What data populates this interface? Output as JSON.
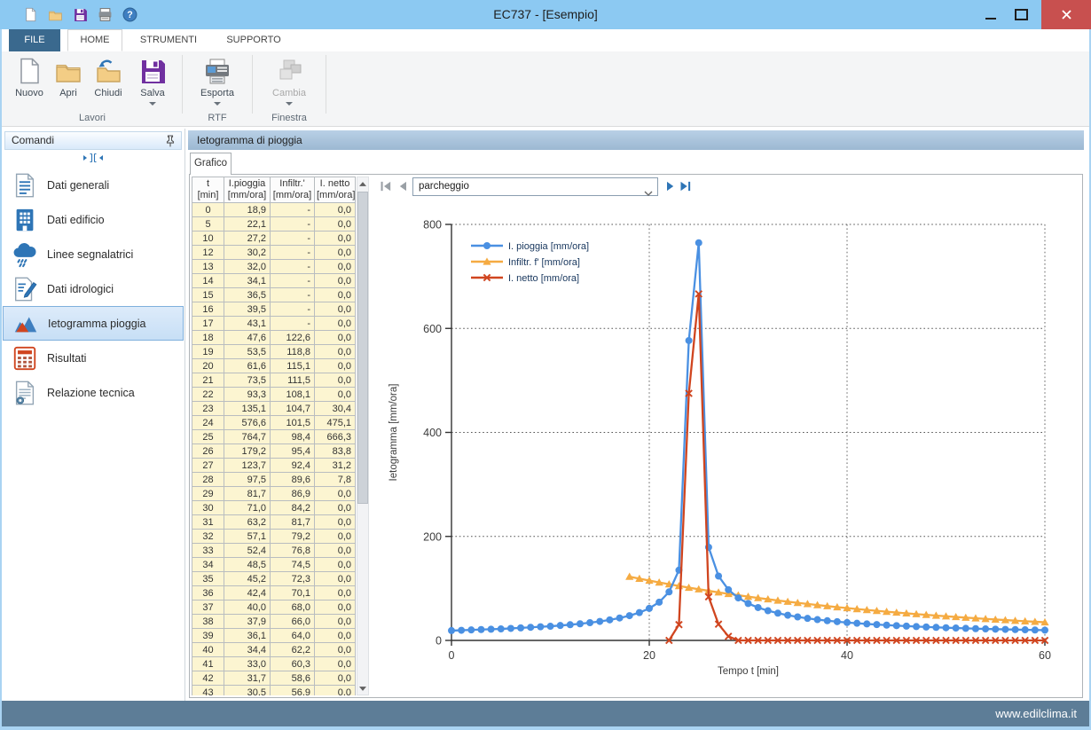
{
  "titlebar": {
    "title": "EC737 - [Esempio]",
    "qat_icons": [
      "new-document-icon",
      "open-folder-icon",
      "save-icon",
      "print-icon",
      "help-icon"
    ]
  },
  "ribbon": {
    "tabs": [
      {
        "label": "FILE"
      },
      {
        "label": "HOME",
        "selected": true
      },
      {
        "label": "STRUMENTI"
      },
      {
        "label": "SUPPORTO"
      }
    ],
    "groups": [
      {
        "label": "Lavori",
        "buttons": [
          {
            "label": "Nuovo",
            "icon": "new-document-icon"
          },
          {
            "label": "Apri",
            "icon": "open-folder-icon"
          },
          {
            "label": "Chiudi",
            "icon": "close-folder-icon"
          },
          {
            "label": "Salva",
            "icon": "save-icon",
            "dropdown": true
          }
        ]
      },
      {
        "label": "RTF",
        "buttons": [
          {
            "label": "Esporta",
            "icon": "export-printer-icon",
            "dropdown": true
          }
        ]
      },
      {
        "label": "Finestra",
        "buttons": [
          {
            "label": "Cambia",
            "icon": "cascade-windows-icon",
            "dropdown": true,
            "disabled": true
          }
        ]
      }
    ]
  },
  "sidebar": {
    "header": "Comandi",
    "items": [
      {
        "label": "Dati generali",
        "icon": "document-lines-icon"
      },
      {
        "label": "Dati edificio",
        "icon": "building-icon"
      },
      {
        "label": "Linee segnalatrici",
        "icon": "rain-cloud-icon"
      },
      {
        "label": "Dati idrologici",
        "icon": "document-pencil-icon"
      },
      {
        "label": "Ietogramma pioggia",
        "icon": "area-chart-icon",
        "selected": true
      },
      {
        "label": "Risultati",
        "icon": "results-grid-icon"
      },
      {
        "label": "Relazione tecnica",
        "icon": "report-icon"
      }
    ]
  },
  "content": {
    "header": "Ietogramma di pioggia",
    "tab": "Grafico",
    "nav": {
      "value": "parcheggio"
    },
    "table": {
      "headers": [
        {
          "line1": "t",
          "line2": "[min]"
        },
        {
          "line1": "I.pioggia",
          "line2": "[mm/ora]"
        },
        {
          "line1": "Infiltr.'",
          "line2": "[mm/ora]"
        },
        {
          "line1": "I. netto",
          "line2": "[mm/ora]"
        }
      ],
      "rows": [
        [
          "0",
          "18,9",
          "-",
          "0,0"
        ],
        [
          "5",
          "22,1",
          "-",
          "0,0"
        ],
        [
          "10",
          "27,2",
          "-",
          "0,0"
        ],
        [
          "12",
          "30,2",
          "-",
          "0,0"
        ],
        [
          "13",
          "32,0",
          "-",
          "0,0"
        ],
        [
          "14",
          "34,1",
          "-",
          "0,0"
        ],
        [
          "15",
          "36,5",
          "-",
          "0,0"
        ],
        [
          "16",
          "39,5",
          "-",
          "0,0"
        ],
        [
          "17",
          "43,1",
          "-",
          "0,0"
        ],
        [
          "18",
          "47,6",
          "122,6",
          "0,0"
        ],
        [
          "19",
          "53,5",
          "118,8",
          "0,0"
        ],
        [
          "20",
          "61,6",
          "115,1",
          "0,0"
        ],
        [
          "21",
          "73,5",
          "111,5",
          "0,0"
        ],
        [
          "22",
          "93,3",
          "108,1",
          "0,0"
        ],
        [
          "23",
          "135,1",
          "104,7",
          "30,4"
        ],
        [
          "24",
          "576,6",
          "101,5",
          "475,1"
        ],
        [
          "25",
          "764,7",
          "98,4",
          "666,3"
        ],
        [
          "26",
          "179,2",
          "95,4",
          "83,8"
        ],
        [
          "27",
          "123,7",
          "92,4",
          "31,2"
        ],
        [
          "28",
          "97,5",
          "89,6",
          "7,8"
        ],
        [
          "29",
          "81,7",
          "86,9",
          "0,0"
        ],
        [
          "30",
          "71,0",
          "84,2",
          "0,0"
        ],
        [
          "31",
          "63,2",
          "81,7",
          "0,0"
        ],
        [
          "32",
          "57,1",
          "79,2",
          "0,0"
        ],
        [
          "33",
          "52,4",
          "76,8",
          "0,0"
        ],
        [
          "34",
          "48,5",
          "74,5",
          "0,0"
        ],
        [
          "35",
          "45,2",
          "72,3",
          "0,0"
        ],
        [
          "36",
          "42,4",
          "70,1",
          "0,0"
        ],
        [
          "37",
          "40,0",
          "68,0",
          "0,0"
        ],
        [
          "38",
          "37,9",
          "66,0",
          "0,0"
        ],
        [
          "39",
          "36,1",
          "64,0",
          "0,0"
        ],
        [
          "40",
          "34,4",
          "62,2",
          "0,0"
        ],
        [
          "41",
          "33,0",
          "60,3",
          "0,0"
        ],
        [
          "42",
          "31,7",
          "58,6",
          "0,0"
        ],
        [
          "43",
          "30,5",
          "56,9",
          "0,0"
        ]
      ]
    }
  },
  "chart_data": {
    "type": "line",
    "title": "",
    "xlabel": "Tempo t [min]",
    "ylabel": "Ietogramma [mm/ora]",
    "xlim": [
      0,
      60
    ],
    "ylim": [
      0,
      800
    ],
    "xticks": [
      0,
      20,
      40,
      60
    ],
    "yticks": [
      0,
      200,
      400,
      600,
      800
    ],
    "grid": "dotted",
    "legend_position": "top-left-inside",
    "series": [
      {
        "name": "I. pioggia [mm/ora]",
        "color": "#4a90e2",
        "marker": "circle",
        "x": [
          0,
          1,
          2,
          3,
          4,
          5,
          6,
          7,
          8,
          9,
          10,
          11,
          12,
          13,
          14,
          15,
          16,
          17,
          18,
          19,
          20,
          21,
          22,
          23,
          24,
          25,
          26,
          27,
          28,
          29,
          30,
          31,
          32,
          33,
          34,
          35,
          36,
          37,
          38,
          39,
          40,
          41,
          42,
          43,
          44,
          45,
          46,
          47,
          48,
          49,
          50,
          51,
          52,
          53,
          54,
          55,
          56,
          57,
          58,
          59,
          60
        ],
        "y": [
          18.9,
          19.5,
          20.2,
          20.9,
          21.5,
          22.1,
          23.1,
          24.1,
          25.2,
          26.2,
          27.2,
          28.7,
          30.2,
          32.0,
          34.1,
          36.5,
          39.5,
          43.1,
          47.6,
          53.5,
          61.6,
          73.5,
          93.3,
          135.1,
          576.6,
          764.7,
          179.2,
          123.7,
          97.5,
          81.7,
          71.0,
          63.2,
          57.1,
          52.4,
          48.5,
          45.2,
          42.4,
          40.0,
          37.9,
          36.1,
          34.4,
          33.0,
          31.7,
          30.5,
          29.4,
          28.4,
          27.5,
          26.6,
          25.8,
          25.1,
          24.4,
          23.8,
          23.2,
          22.6,
          22.1,
          21.6,
          21.2,
          20.8,
          20.4,
          20.0,
          19.7
        ]
      },
      {
        "name": "Infiltr. f' [mm/ora]",
        "color": "#f5ab42",
        "marker": "triangle",
        "x": [
          18,
          19,
          20,
          21,
          22,
          23,
          24,
          25,
          26,
          27,
          28,
          29,
          30,
          31,
          32,
          33,
          34,
          35,
          36,
          37,
          38,
          39,
          40,
          41,
          42,
          43,
          44,
          45,
          46,
          47,
          48,
          49,
          50,
          51,
          52,
          53,
          54,
          55,
          56,
          57,
          58,
          59,
          60
        ],
        "y": [
          122.6,
          118.8,
          115.1,
          111.5,
          108.1,
          104.7,
          101.5,
          98.4,
          95.4,
          92.4,
          89.6,
          86.9,
          84.2,
          81.7,
          79.2,
          76.8,
          74.5,
          72.3,
          70.1,
          68.0,
          66.0,
          64.0,
          62.2,
          60.3,
          58.6,
          56.9,
          55.2,
          53.6,
          52.1,
          50.6,
          49.2,
          47.8,
          46.4,
          45.1,
          43.8,
          42.6,
          41.4,
          40.2,
          39.1,
          38.0,
          36.9,
          35.9,
          34.9
        ]
      },
      {
        "name": "I. netto [mm/ora]",
        "color": "#d0451f",
        "marker": "x",
        "x": [
          22,
          23,
          24,
          25,
          26,
          27,
          28,
          29,
          30,
          31,
          32,
          33,
          34,
          35,
          36,
          37,
          38,
          39,
          40,
          41,
          42,
          43,
          44,
          45,
          46,
          47,
          48,
          49,
          50,
          51,
          52,
          53,
          54,
          55,
          56,
          57,
          58,
          59,
          60
        ],
        "y": [
          0.0,
          30.4,
          475.1,
          666.3,
          83.8,
          31.2,
          7.8,
          0,
          0,
          0,
          0,
          0,
          0,
          0,
          0,
          0,
          0,
          0,
          0,
          0,
          0,
          0,
          0,
          0,
          0,
          0,
          0,
          0,
          0,
          0,
          0,
          0,
          0,
          0,
          0,
          0,
          0,
          0,
          0
        ]
      }
    ]
  },
  "statusbar": {
    "text": "www.edilclima.it"
  },
  "colors": {
    "accent_blue": "#2e75b6",
    "titlebar": "#8cc9f2",
    "file_tab": "#3a698e",
    "close_button": "#c8504f",
    "status_bar": "#5d7d97",
    "table_cell_bg": "#fcf5d1",
    "series_pioggia": "#4a90e2",
    "series_infiltr": "#f5ab42",
    "series_netto": "#d0451f"
  }
}
